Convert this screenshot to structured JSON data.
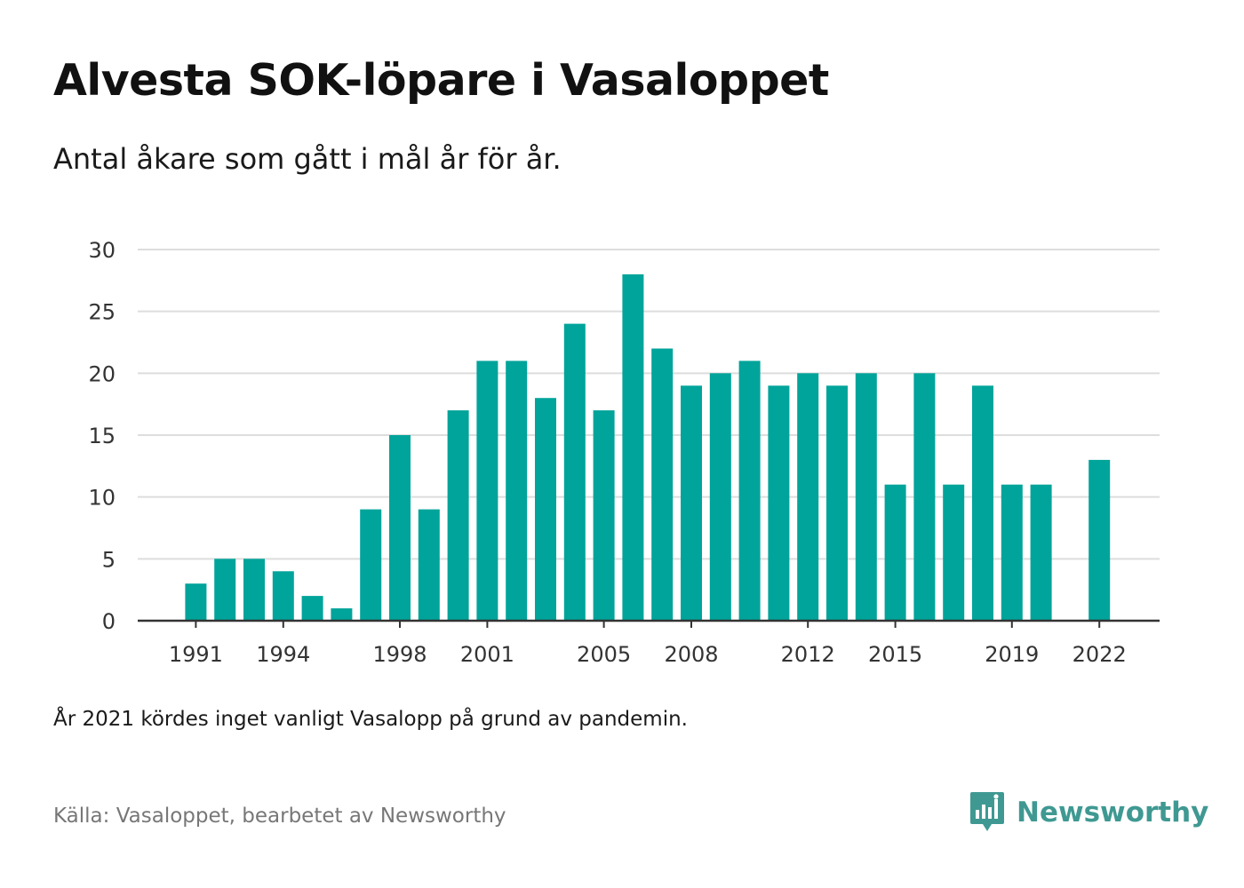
{
  "header": {
    "title": "Alvesta SOK-löpare i Vasaloppet",
    "subtitle": "Antal åkare som gått i mål år för år."
  },
  "footer": {
    "note": "År 2021 kördes inget vanligt Vasalopp på grund av pandemin.",
    "source": "Källa: Vasaloppet, bearbetet av Newsworthy",
    "brand_name": "Newsworthy",
    "brand_icon": "newsworthy-logo-icon"
  },
  "colors": {
    "bar": "#00a49a",
    "grid": "#dddddd",
    "axis": "#333333",
    "brand": "#3f9992"
  },
  "chart_data": {
    "type": "bar",
    "categories": [
      "1990",
      "1991",
      "1992",
      "1993",
      "1994",
      "1995",
      "1996",
      "1997",
      "1998",
      "1999",
      "2000",
      "2001",
      "2002",
      "2003",
      "2004",
      "2005",
      "2006",
      "2007",
      "2008",
      "2009",
      "2010",
      "2011",
      "2012",
      "2013",
      "2014",
      "2015",
      "2016",
      "2017",
      "2018",
      "2019",
      "2020",
      "2021",
      "2022"
    ],
    "values": [
      0,
      3,
      5,
      5,
      4,
      2,
      1,
      9,
      15,
      9,
      17,
      21,
      21,
      18,
      24,
      17,
      28,
      22,
      19,
      20,
      21,
      19,
      20,
      19,
      20,
      11,
      20,
      11,
      19,
      11,
      11,
      0,
      13
    ],
    "x_tick_labels": [
      "1991",
      "1994",
      "1998",
      "2001",
      "2005",
      "2008",
      "2012",
      "2015",
      "2019",
      "2022"
    ],
    "y_ticks": [
      0,
      5,
      10,
      15,
      20,
      25,
      30
    ],
    "ylim": [
      0,
      30
    ],
    "xlabel": "",
    "ylabel": "",
    "grid": true,
    "legend": "none"
  }
}
